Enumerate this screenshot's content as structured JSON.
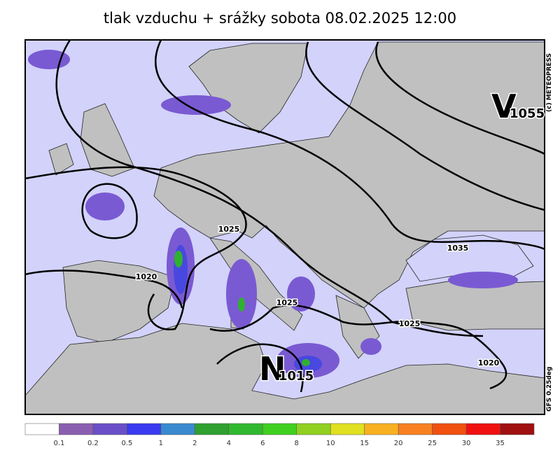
{
  "header": {
    "title": "tlak vzduchu + srážky  sobota 08.02.2025 12:00"
  },
  "credits": {
    "copyright": "(c) METEOPRESS",
    "model": "GFS  0.25deg"
  },
  "centers": [
    {
      "letter": "V",
      "value": "1055"
    },
    {
      "letter": "N",
      "value": "1015"
    }
  ],
  "isobar_labels": [
    "1025",
    "1020",
    "1025",
    "1025",
    "1035",
    "1020"
  ],
  "colorbar": {
    "labels": [
      "0.1",
      "0.2",
      "0.5",
      "1",
      "2",
      "4",
      "6",
      "8",
      "10",
      "15",
      "20",
      "25",
      "30",
      "35"
    ],
    "colors": [
      "#ffffff",
      "#8a5fb0",
      "#6a4fc8",
      "#3a3af0",
      "#3a8ad0",
      "#30a030",
      "#30b830",
      "#40d020",
      "#90d020",
      "#e0e020",
      "#f8b020",
      "#f88020",
      "#f05010",
      "#f01010",
      "#a01010"
    ]
  }
}
